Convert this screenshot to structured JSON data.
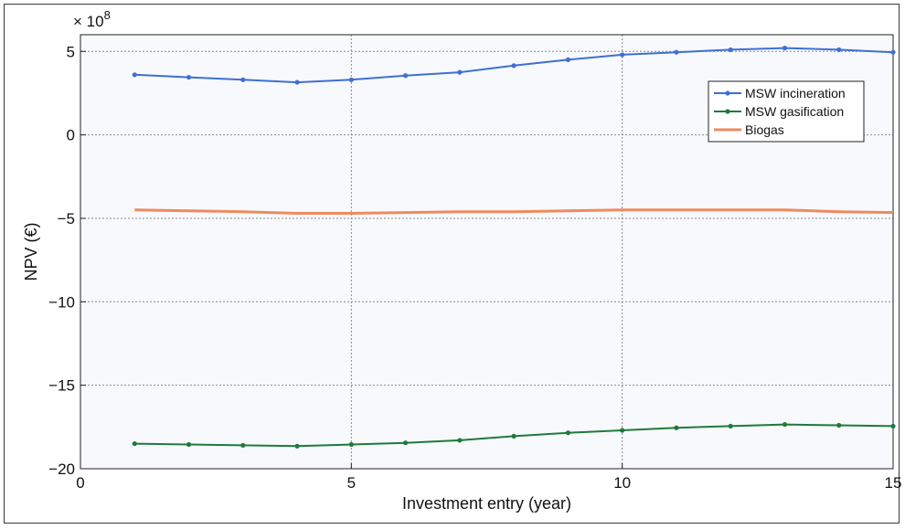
{
  "chart_data": {
    "type": "line",
    "title": "",
    "xlabel": "Investment entry (year)",
    "ylabel": "NPV (€)",
    "y_multiplier_label": "× 10",
    "y_multiplier_exponent": "8",
    "xlim": [
      0,
      15
    ],
    "ylim": [
      -20,
      6
    ],
    "x_ticks": [
      0,
      5,
      10,
      15
    ],
    "y_ticks": [
      -20,
      -15,
      -10,
      -5,
      0,
      5
    ],
    "x_tick_labels": [
      "0",
      "5",
      "10",
      "15"
    ],
    "y_tick_labels": [
      "−20",
      "−15",
      "−10",
      "−5",
      "0",
      "5"
    ],
    "grid": true,
    "legend_position": "top-right",
    "x": [
      1,
      2,
      3,
      4,
      5,
      6,
      7,
      8,
      9,
      10,
      11,
      12,
      13,
      14,
      15
    ],
    "series": [
      {
        "name": "MSW incineration",
        "color": "#3f6fd1",
        "marker": "dot",
        "values": [
          3.6,
          3.45,
          3.3,
          3.15,
          3.3,
          3.55,
          3.75,
          4.15,
          4.5,
          4.8,
          4.95,
          5.1,
          5.2,
          5.1,
          4.95
        ]
      },
      {
        "name": "MSW gasification",
        "color": "#1f7a3a",
        "marker": "dot",
        "values": [
          -18.5,
          -18.55,
          -18.6,
          -18.65,
          -18.55,
          -18.45,
          -18.3,
          -18.05,
          -17.85,
          -17.7,
          -17.55,
          -17.45,
          -17.35,
          -17.4,
          -17.45
        ]
      },
      {
        "name": "Biogas",
        "color": "#f08a5d",
        "marker": "none",
        "values": [
          -4.5,
          -4.55,
          -4.6,
          -4.7,
          -4.7,
          -4.65,
          -4.6,
          -4.6,
          -4.55,
          -4.5,
          -4.5,
          -4.5,
          -4.5,
          -4.6,
          -4.65
        ]
      }
    ]
  }
}
